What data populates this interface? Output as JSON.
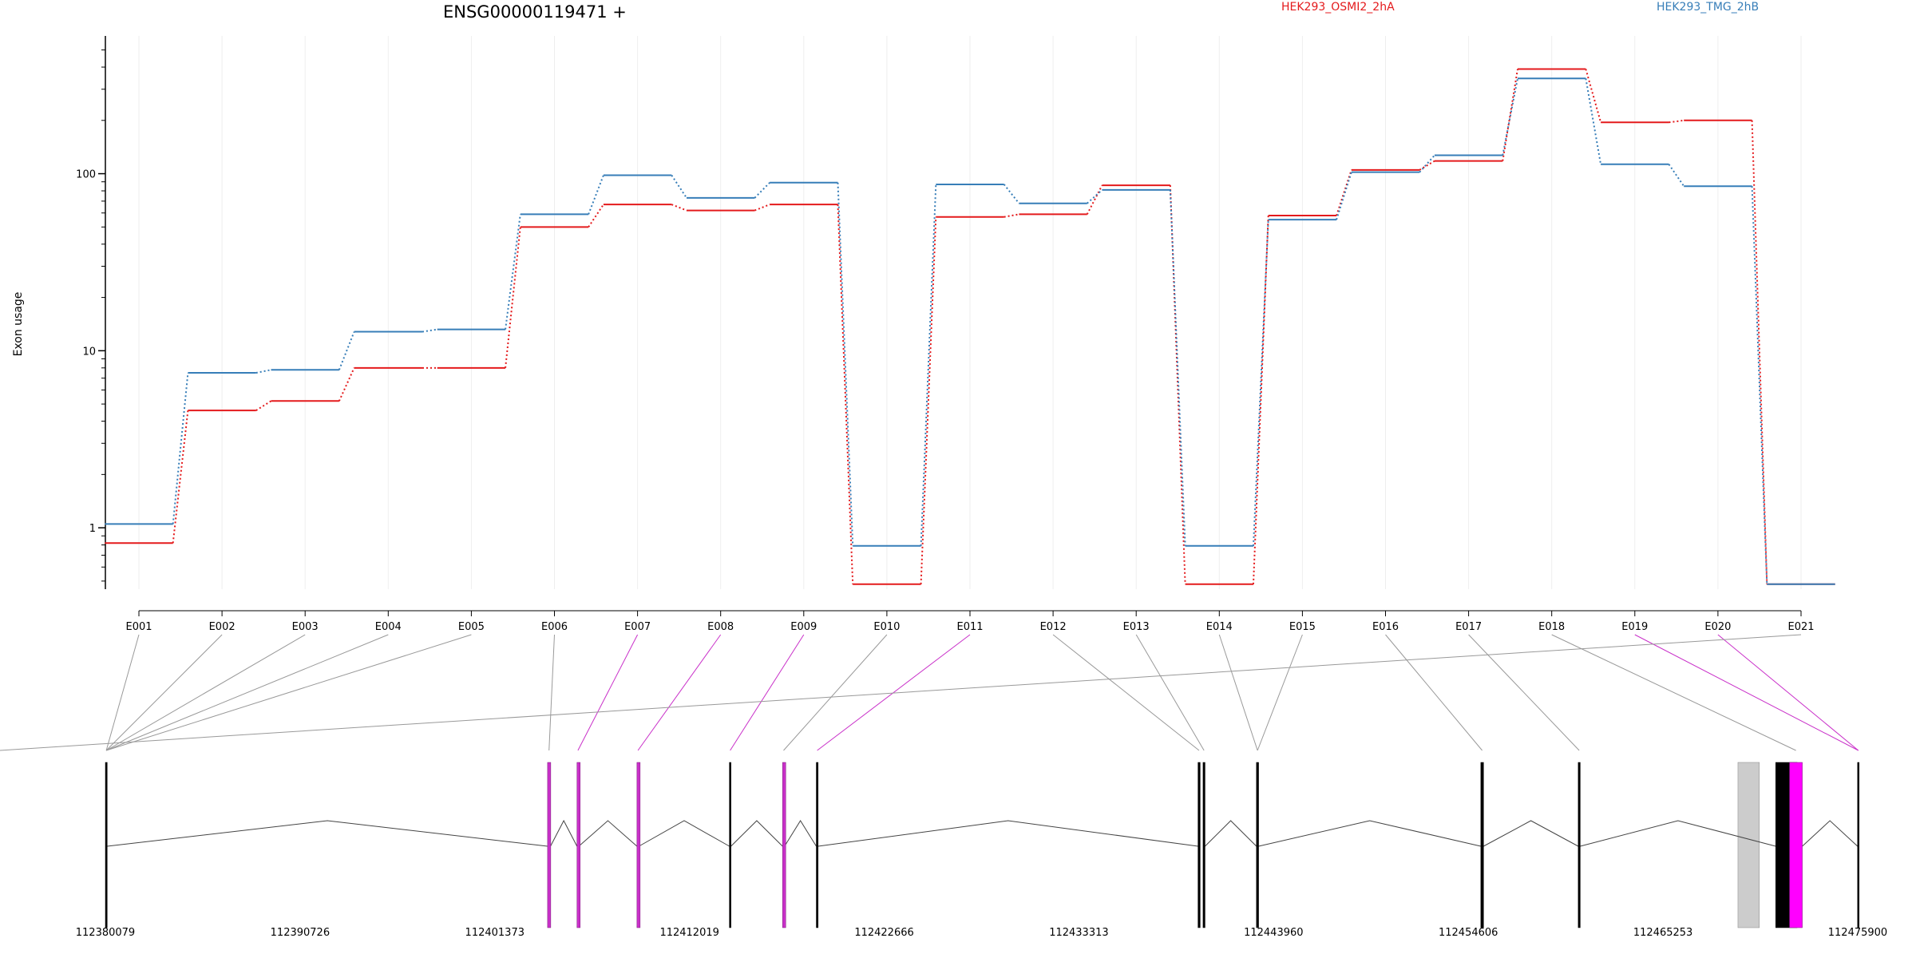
{
  "chart_data": {
    "type": "line",
    "title": "ENSG00000119471 +",
    "ylabel": "Exon usage",
    "yscale": "log",
    "ylim": [
      0.45,
      600
    ],
    "y_ticks": [
      {
        "value": 1,
        "label": "1"
      },
      {
        "value": 10,
        "label": "10"
      },
      {
        "value": 100,
        "label": "100"
      }
    ],
    "legend_position": "top",
    "categories": [
      "E001",
      "E002",
      "E003",
      "E004",
      "E005",
      "E006",
      "E007",
      "E008",
      "E009",
      "E010",
      "E011",
      "E012",
      "E013",
      "E014",
      "E015",
      "E016",
      "E017",
      "E018",
      "E019",
      "E020",
      "E021"
    ],
    "series": [
      {
        "name": "HEK293_OSMI2_2hA",
        "color": "#e41a1c",
        "values": [
          0.82,
          4.6,
          5.2,
          8.0,
          8.0,
          50,
          67,
          62,
          67,
          0.48,
          57,
          59,
          86,
          0.48,
          58,
          105,
          118,
          390,
          195,
          200,
          0.48
        ]
      },
      {
        "name": "HEK293_TMG_2hB",
        "color": "#377eb8",
        "values": [
          1.05,
          7.5,
          7.8,
          12.8,
          13.2,
          59,
          98,
          73,
          89,
          0.79,
          87,
          68,
          81,
          0.79,
          55,
          102,
          127,
          345,
          113,
          85,
          0.48
        ]
      }
    ],
    "gene_model": {
      "coord_ticks": [
        "112380079",
        "112390726",
        "112401373",
        "112412019",
        "112422666",
        "112433313",
        "112443960",
        "112454606",
        "112465253",
        "112475900"
      ],
      "coord_start": 112380079,
      "coord_end": 112475900,
      "exon_positions": [
        112380079,
        112404258,
        112405868,
        112409146,
        112414200,
        112417108,
        112418953,
        112439825,
        112440100,
        112443020,
        112455290,
        112460616,
        112471415,
        112472170,
        112475890
      ],
      "exon_widths": [
        100,
        160,
        100,
        110,
        60,
        110,
        100,
        120,
        110,
        120,
        150,
        110,
        1170,
        700,
        70
      ],
      "exon_highlight": [
        false,
        true,
        true,
        true,
        false,
        true,
        false,
        false,
        false,
        false,
        false,
        false,
        false,
        true,
        false
      ],
      "grey_blocks": [
        [
          112469350,
          112470520
        ]
      ],
      "exon_link_targets": [
        0,
        0,
        0,
        0,
        0,
        1,
        2,
        3,
        4,
        5,
        6,
        7,
        8,
        9,
        9,
        10,
        11,
        13,
        14,
        14,
        15
      ],
      "link_highlight": [
        false,
        false,
        false,
        false,
        false,
        false,
        true,
        true,
        true,
        false,
        true,
        false,
        false,
        false,
        false,
        false,
        false,
        false,
        true,
        true,
        false
      ]
    }
  },
  "colors": {
    "highlight": "#c930c9",
    "exon": "#000000",
    "grey_block": "#cccccc",
    "magenta_block": "#ff00ff",
    "link": "#999999"
  }
}
